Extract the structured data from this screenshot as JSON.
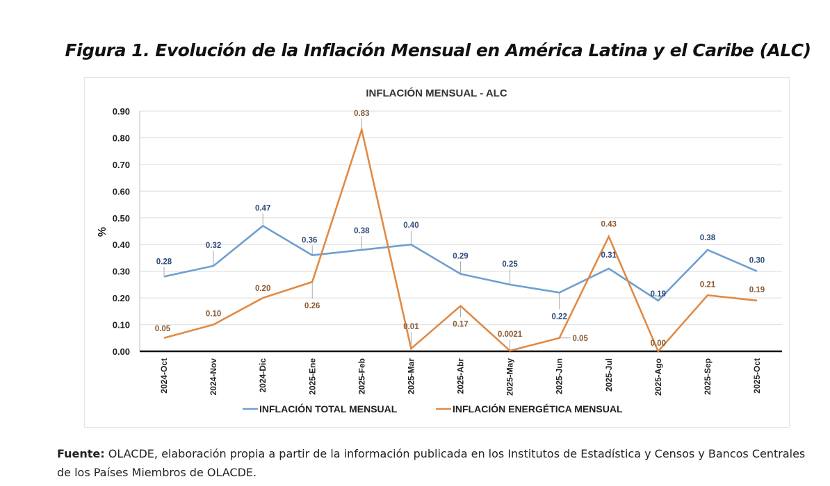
{
  "figure_title": "Figura 1. Evolución de la Inflación Mensual en América Latina y el Caribe (ALC)",
  "source": {
    "label": "Fuente:",
    "text": " OLACDE, elaboración propia a partir de la información publicada en los Institutos de Estadística y Censos y Bancos Centrales de los Países Miembros de OLACDE."
  },
  "chart_data": {
    "type": "line",
    "title": "INFLACIÓN MENSUAL - ALC",
    "xlabel": "",
    "ylabel": "%",
    "ylim": [
      0,
      0.9
    ],
    "yticks": [
      "0.00",
      "0.10",
      "0.20",
      "0.30",
      "0.40",
      "0.50",
      "0.60",
      "0.70",
      "0.80",
      "0.90"
    ],
    "grid": true,
    "legend_position": "bottom",
    "categories": [
      "2024-Oct",
      "2024-Nov",
      "2024-Dic",
      "2025-Ene",
      "2025-Feb",
      "2025-Mar",
      "2025-Abr",
      "2025-May",
      "2025-Jun",
      "2025-Jul",
      "2025-Ago",
      "2025-Sep",
      "2025-Oct"
    ],
    "series": [
      {
        "name": "INFLACIÓN TOTAL MENSUAL",
        "color": "#6f9fd0",
        "label_color": "#2e4a7a",
        "values": [
          0.28,
          0.32,
          0.47,
          0.36,
          0.38,
          0.4,
          0.29,
          0.25,
          0.22,
          0.31,
          0.19,
          0.38,
          0.3
        ],
        "labels": [
          "0.28",
          "0.32",
          "0.47",
          "0.36",
          "0.38",
          "0.40",
          "0.29",
          "0.25",
          "0.22",
          "0.31",
          "0.19",
          "0.38",
          "0.30"
        ]
      },
      {
        "name": "INFLACIÓN ENERGÉTICA MENSUAL",
        "color": "#e08a45",
        "label_color": "#8a5a32",
        "values": [
          0.05,
          0.1,
          0.2,
          0.26,
          0.83,
          0.01,
          0.17,
          0.0021,
          0.05,
          0.43,
          0.0,
          0.21,
          0.19
        ],
        "labels": [
          "0.05",
          "0.10",
          "0.20",
          "0.26",
          "0.83",
          "0.01",
          "0.17",
          "0.0021",
          "0.05",
          "0.43",
          "0.00",
          "0.21",
          "0.19"
        ]
      }
    ]
  }
}
